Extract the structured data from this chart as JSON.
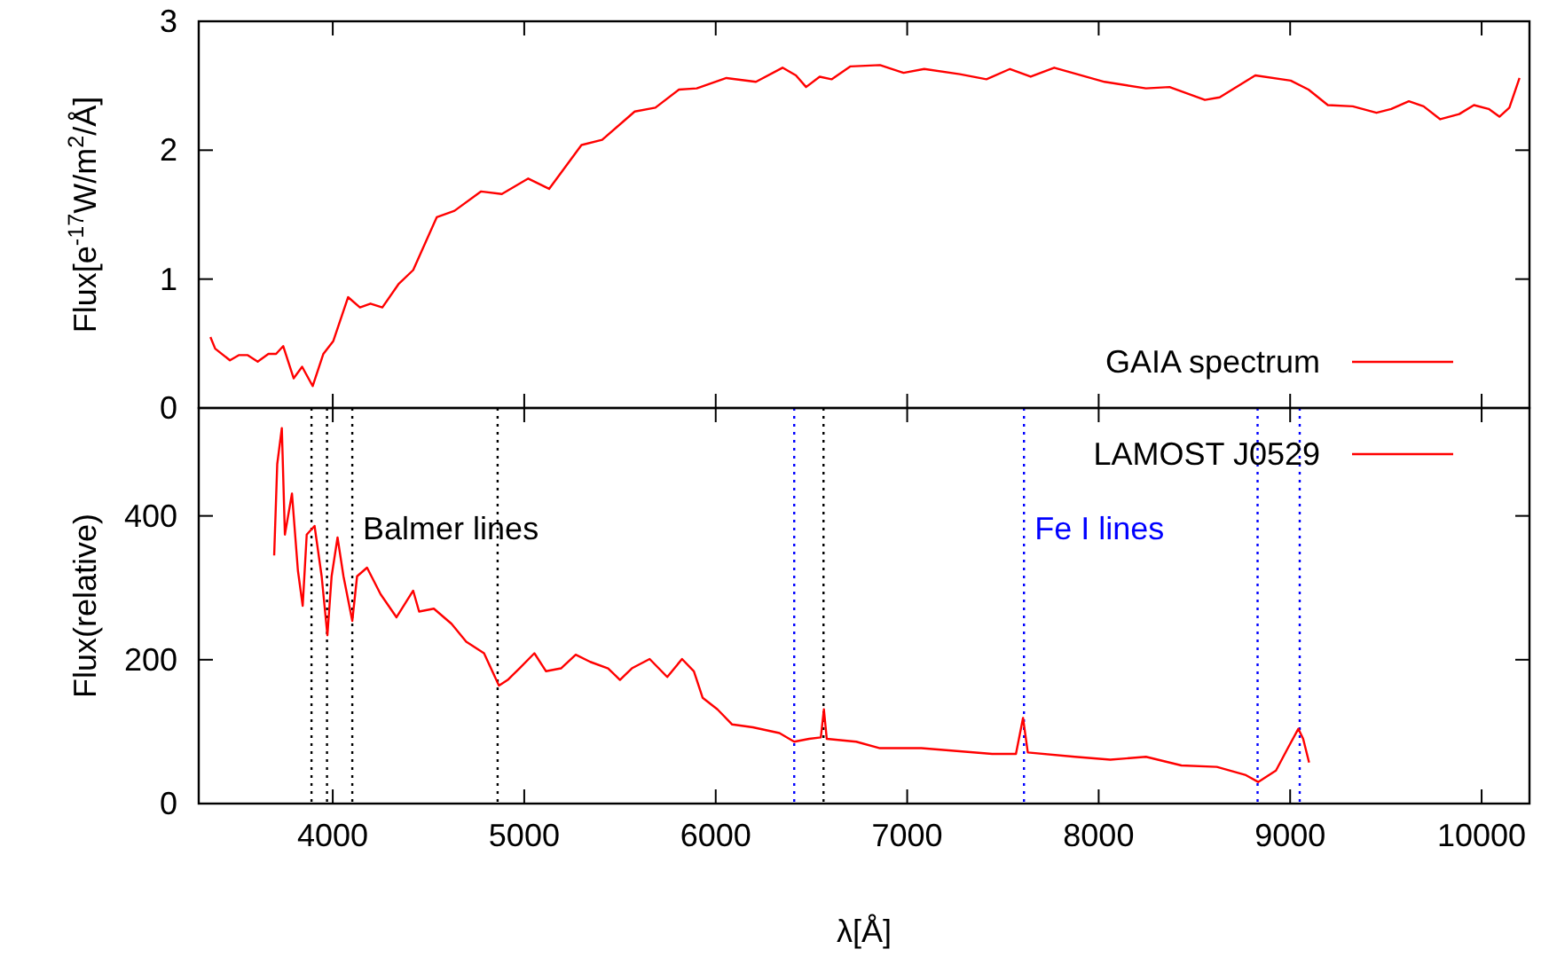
{
  "chart_data": [
    {
      "type": "line",
      "ylabel": "Flux[e$^{-17}$W/m$^{2}$/Å]",
      "xlim": [
        3300,
        10250
      ],
      "xticks": [
        4000,
        5000,
        6000,
        7000,
        8000,
        9000,
        10000
      ],
      "ylim": [
        0,
        3
      ],
      "yticks": [
        0,
        1,
        2,
        3
      ],
      "tick_labels": "y",
      "legend": "bottom right",
      "grid": false,
      "series": [
        {
          "name": "GAIA spectrum",
          "color": "#ff0000",
          "x": [
            3361,
            3386,
            3463,
            3509,
            3556,
            3608,
            3664,
            3704,
            3741,
            3796,
            3840,
            3895,
            3951,
            4003,
            4080,
            4142,
            4197,
            4259,
            4343,
            4420,
            4543,
            4636,
            4775,
            4883,
            5021,
            5130,
            5299,
            5407,
            5577,
            5685,
            5808,
            5901,
            6056,
            6210,
            6349,
            6419,
            6472,
            6543,
            6605,
            6704,
            6858,
            6981,
            7089,
            7275,
            7414,
            7537,
            7645,
            7768,
            8031,
            8247,
            8370,
            8555,
            8632,
            8818,
            9003,
            9096,
            9197,
            9327,
            9451,
            9528,
            9620,
            9697,
            9784,
            9883,
            9960,
            10037,
            10093,
            10145,
            10198
          ],
          "values": [
            0.55,
            0.46,
            0.37,
            0.41,
            0.41,
            0.36,
            0.42,
            0.42,
            0.48,
            0.23,
            0.32,
            0.17,
            0.42,
            0.52,
            0.86,
            0.78,
            0.81,
            0.78,
            0.96,
            1.07,
            1.48,
            1.53,
            1.68,
            1.66,
            1.78,
            1.7,
            2.04,
            2.08,
            2.3,
            2.33,
            2.47,
            2.48,
            2.56,
            2.53,
            2.64,
            2.58,
            2.49,
            2.57,
            2.55,
            2.65,
            2.66,
            2.6,
            2.63,
            2.59,
            2.55,
            2.63,
            2.57,
            2.64,
            2.53,
            2.48,
            2.49,
            2.39,
            2.41,
            2.58,
            2.54,
            2.47,
            2.35,
            2.34,
            2.29,
            2.32,
            2.38,
            2.34,
            2.24,
            2.28,
            2.35,
            2.32,
            2.26,
            2.33,
            2.56
          ]
        }
      ]
    },
    {
      "type": "line",
      "xlabel": "λ[Å]",
      "ylabel": "Flux(relative)",
      "xlim": [
        3300,
        10250
      ],
      "xticks": [
        4000,
        5000,
        6000,
        7000,
        8000,
        9000,
        10000
      ],
      "ylim": [
        0,
        550
      ],
      "yticks": [
        0,
        200,
        400
      ],
      "legend": "top right",
      "grid": false,
      "series": [
        {
          "name": "LAMOST J0529",
          "color": "#ff0000",
          "x": [
            3694,
            3710,
            3734,
            3750,
            3787,
            3818,
            3843,
            3864,
            3905,
            3942,
            3972,
            3994,
            4025,
            4056,
            4102,
            4127,
            4179,
            4250,
            4333,
            4420,
            4451,
            4528,
            4620,
            4697,
            4790,
            4868,
            4914,
            4975,
            5053,
            5114,
            5192,
            5269,
            5345,
            5438,
            5500,
            5562,
            5655,
            5747,
            5824,
            5886,
            5932,
            6009,
            6086,
            6194,
            6333,
            6410,
            6488,
            6549,
            6565,
            6580,
            6734,
            6858,
            6889,
            7074,
            7259,
            7444,
            7568,
            7605,
            7630,
            7876,
            8061,
            8247,
            8432,
            8617,
            8765,
            8833,
            8926,
            8988,
            9043,
            9068,
            9099
          ],
          "values": [
            345,
            472,
            522,
            374,
            431,
            324,
            275,
            374,
            386,
            316,
            234,
            316,
            370,
            316,
            254,
            316,
            328,
            291,
            259,
            296,
            267,
            271,
            250,
            225,
            209,
            164,
            172,
            188,
            209,
            184,
            188,
            207,
            197,
            188,
            172,
            188,
            201,
            176,
            201,
            184,
            147,
            131,
            110,
            106,
            98,
            86,
            90,
            92,
            131,
            90,
            86,
            77,
            77,
            77,
            73,
            69,
            69,
            119,
            71,
            65,
            61,
            65,
            53,
            51,
            40,
            30,
            46,
            77,
            104,
            90,
            57
          ]
        }
      ],
      "ref_lines": [
        {
          "axis": "x",
          "value": 3889,
          "color": "#000000",
          "line_style": "dotted"
        },
        {
          "axis": "x",
          "value": 3970,
          "color": "#000000",
          "line_style": "dotted"
        },
        {
          "axis": "x",
          "value": 4102,
          "color": "#000000",
          "line_style": "dotted",
          "label": "Balmer lines"
        },
        {
          "axis": "x",
          "value": 4861,
          "color": "#000000",
          "line_style": "dotted"
        },
        {
          "axis": "x",
          "value": 6563,
          "color": "#000000",
          "line_style": "dotted"
        },
        {
          "axis": "x",
          "value": 6410,
          "color": "#0000ff",
          "line_style": "dotted"
        },
        {
          "axis": "x",
          "value": 7610,
          "color": "#0000ff",
          "line_style": "dotted",
          "label": "Fe I lines"
        },
        {
          "axis": "x",
          "value": 8830,
          "color": "#0000ff",
          "line_style": "dotted"
        },
        {
          "axis": "x",
          "value": 9050,
          "color": "#0000ff",
          "line_style": "dotted"
        }
      ]
    }
  ]
}
